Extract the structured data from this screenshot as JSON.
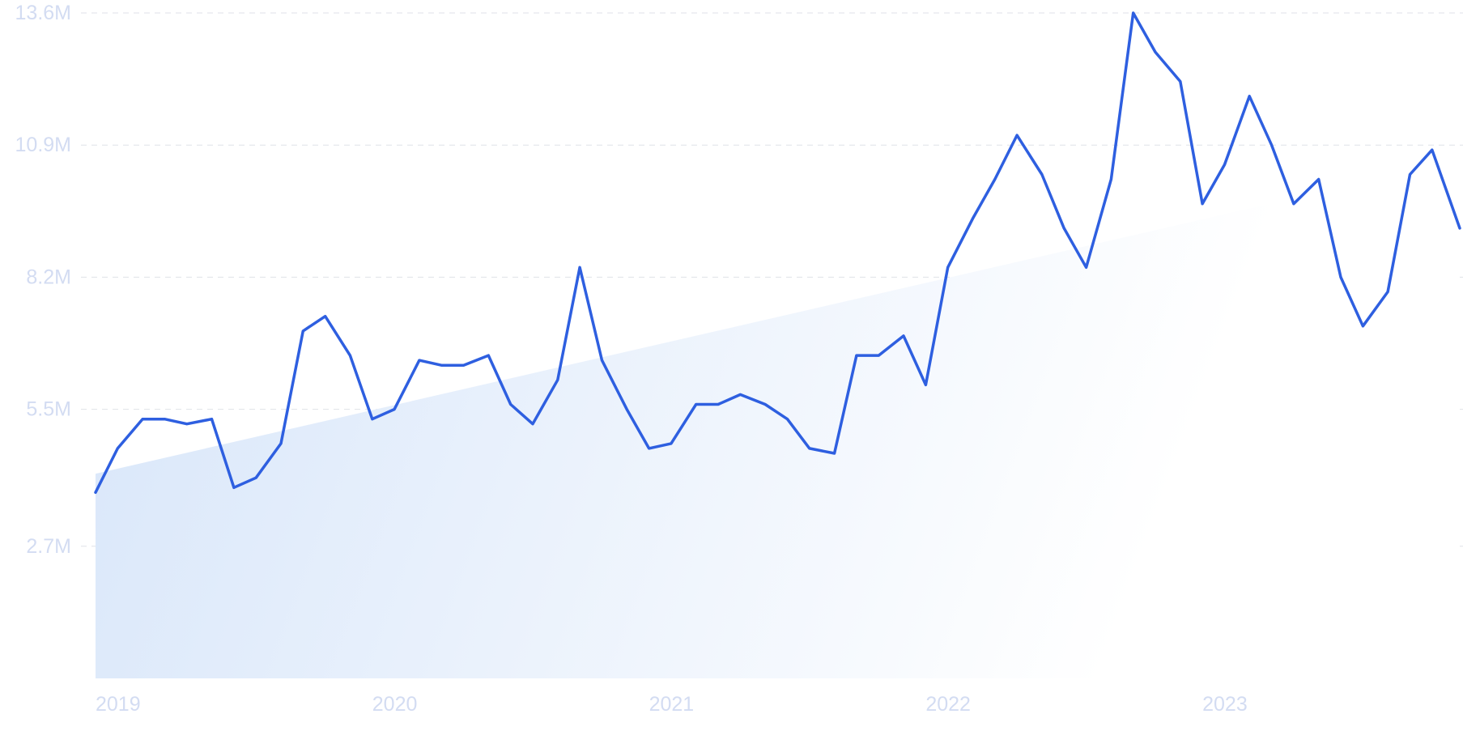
{
  "chart_data": {
    "type": "line",
    "title": "",
    "xlabel": "",
    "ylabel": "",
    "y_ticks": [
      {
        "value": 2.7,
        "label": "2.7M"
      },
      {
        "value": 5.5,
        "label": "5.5M"
      },
      {
        "value": 8.2,
        "label": "8.2M"
      },
      {
        "value": 10.9,
        "label": "10.9M"
      },
      {
        "value": 13.6,
        "label": "13.6M"
      }
    ],
    "x_ticks": [
      {
        "value": 2019.0,
        "label": "2019"
      },
      {
        "value": 2020.0,
        "label": "2020"
      },
      {
        "value": 2021.0,
        "label": "2021"
      },
      {
        "value": 2022.0,
        "label": "2022"
      },
      {
        "value": 2023.0,
        "label": "2023"
      }
    ],
    "ylim": [
      0,
      13.6
    ],
    "xlim": [
      2019.0,
      2023.93
    ],
    "grid": "horizontal",
    "legend": "none",
    "colors": {
      "line": "#2e5fe0",
      "area_start": "#dbe8fa",
      "area_end": "#ffffff",
      "grid": "#dfe2e8",
      "tick_text": "#d3dcf2"
    },
    "series": [
      {
        "values": [
          [
            2019.0,
            3.8
          ],
          [
            2019.08,
            4.7
          ],
          [
            2019.17,
            5.3
          ],
          [
            2019.25,
            5.3
          ],
          [
            2019.33,
            5.2
          ],
          [
            2019.42,
            5.3
          ],
          [
            2019.5,
            3.9
          ],
          [
            2019.58,
            4.1
          ],
          [
            2019.67,
            4.8
          ],
          [
            2019.75,
            7.1
          ],
          [
            2019.83,
            7.4
          ],
          [
            2019.92,
            6.6
          ],
          [
            2020.0,
            5.3
          ],
          [
            2020.08,
            5.5
          ],
          [
            2020.17,
            6.5
          ],
          [
            2020.25,
            6.4
          ],
          [
            2020.33,
            6.4
          ],
          [
            2020.42,
            6.6
          ],
          [
            2020.5,
            5.6
          ],
          [
            2020.58,
            5.2
          ],
          [
            2020.67,
            6.1
          ],
          [
            2020.75,
            8.4
          ],
          [
            2020.83,
            6.5
          ],
          [
            2020.92,
            5.5
          ],
          [
            2021.0,
            4.7
          ],
          [
            2021.08,
            4.8
          ],
          [
            2021.17,
            5.6
          ],
          [
            2021.25,
            5.6
          ],
          [
            2021.33,
            5.8
          ],
          [
            2021.42,
            5.6
          ],
          [
            2021.5,
            5.3
          ],
          [
            2021.58,
            4.7
          ],
          [
            2021.67,
            4.6
          ],
          [
            2021.75,
            6.6
          ],
          [
            2021.83,
            6.6
          ],
          [
            2021.92,
            7.0
          ],
          [
            2022.0,
            6.0
          ],
          [
            2022.08,
            8.4
          ],
          [
            2022.17,
            9.4
          ],
          [
            2022.25,
            10.2
          ],
          [
            2022.33,
            11.1
          ],
          [
            2022.42,
            10.3
          ],
          [
            2022.5,
            9.2
          ],
          [
            2022.58,
            8.4
          ],
          [
            2022.67,
            10.2
          ],
          [
            2022.75,
            13.6
          ],
          [
            2022.83,
            12.8
          ],
          [
            2022.92,
            12.2
          ],
          [
            2023.0,
            9.7
          ],
          [
            2023.08,
            10.5
          ],
          [
            2023.17,
            11.9
          ],
          [
            2023.25,
            10.9
          ],
          [
            2023.33,
            9.7
          ],
          [
            2023.42,
            10.2
          ],
          [
            2023.5,
            8.2
          ],
          [
            2023.58,
            7.2
          ],
          [
            2023.67,
            7.9
          ],
          [
            2023.75,
            10.3
          ],
          [
            2023.83,
            10.8
          ],
          [
            2023.93,
            9.2
          ]
        ]
      }
    ]
  }
}
